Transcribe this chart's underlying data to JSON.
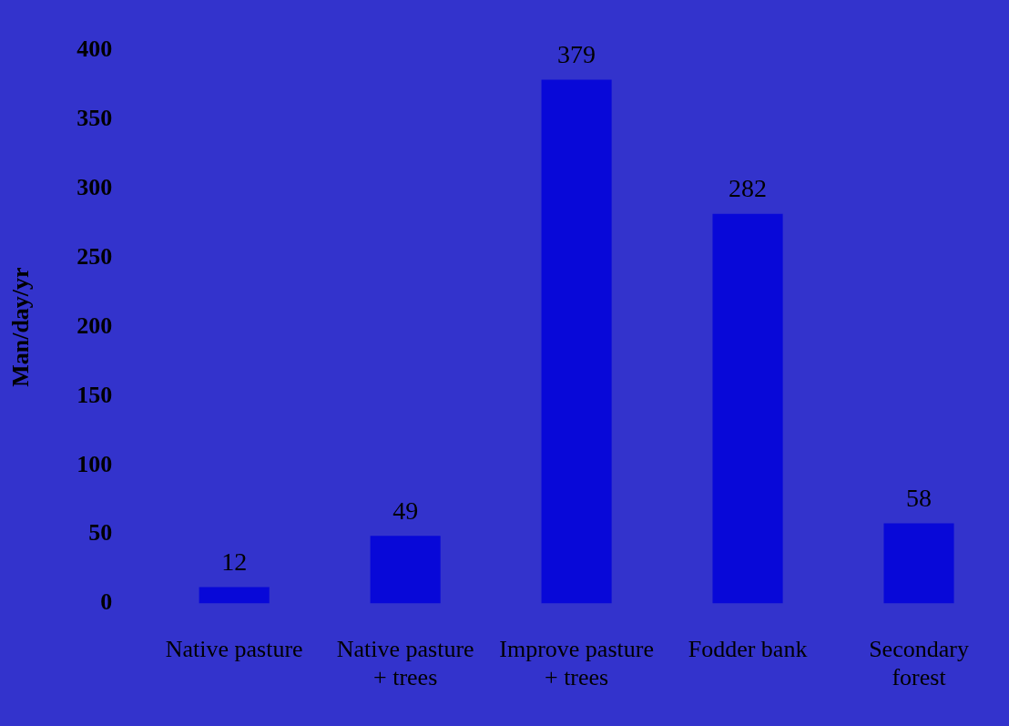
{
  "chart_data": {
    "type": "bar",
    "ylabel": "Man/day/yr",
    "categories": [
      "Native pasture",
      "Native pasture + trees",
      "Improve pasture + trees",
      "Fodder bank",
      "Secondary forest"
    ],
    "values": [
      12,
      49,
      379,
      282,
      58
    ],
    "color": "#0808d8",
    "ylim": [
      0,
      400
    ],
    "yticks": [
      0,
      50,
      100,
      150,
      200,
      250,
      300,
      350,
      400
    ],
    "grid": false,
    "legend": false,
    "data_labels": true
  }
}
